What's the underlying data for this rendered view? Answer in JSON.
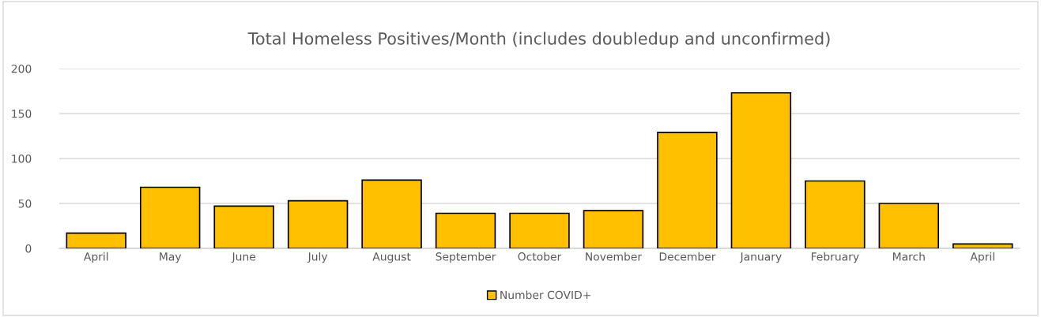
{
  "chart_data": {
    "type": "bar",
    "title": "Total Homeless Positives/Month (includes doubledup and unconfirmed)",
    "categories": [
      "April",
      "May",
      "June",
      "July",
      "August",
      "September",
      "October",
      "November",
      "December",
      "January",
      "February",
      "March",
      "April"
    ],
    "series": [
      {
        "name": "Number COVID+",
        "color": "#ffc000",
        "values": [
          17,
          68,
          47,
          53,
          76,
          39,
          39,
          42,
          129,
          173,
          75,
          50,
          5
        ]
      }
    ],
    "ylim": [
      0,
      200
    ],
    "yticks": [
      0,
      50,
      100,
      150,
      200
    ],
    "grid": "y",
    "legend": "bottom"
  }
}
